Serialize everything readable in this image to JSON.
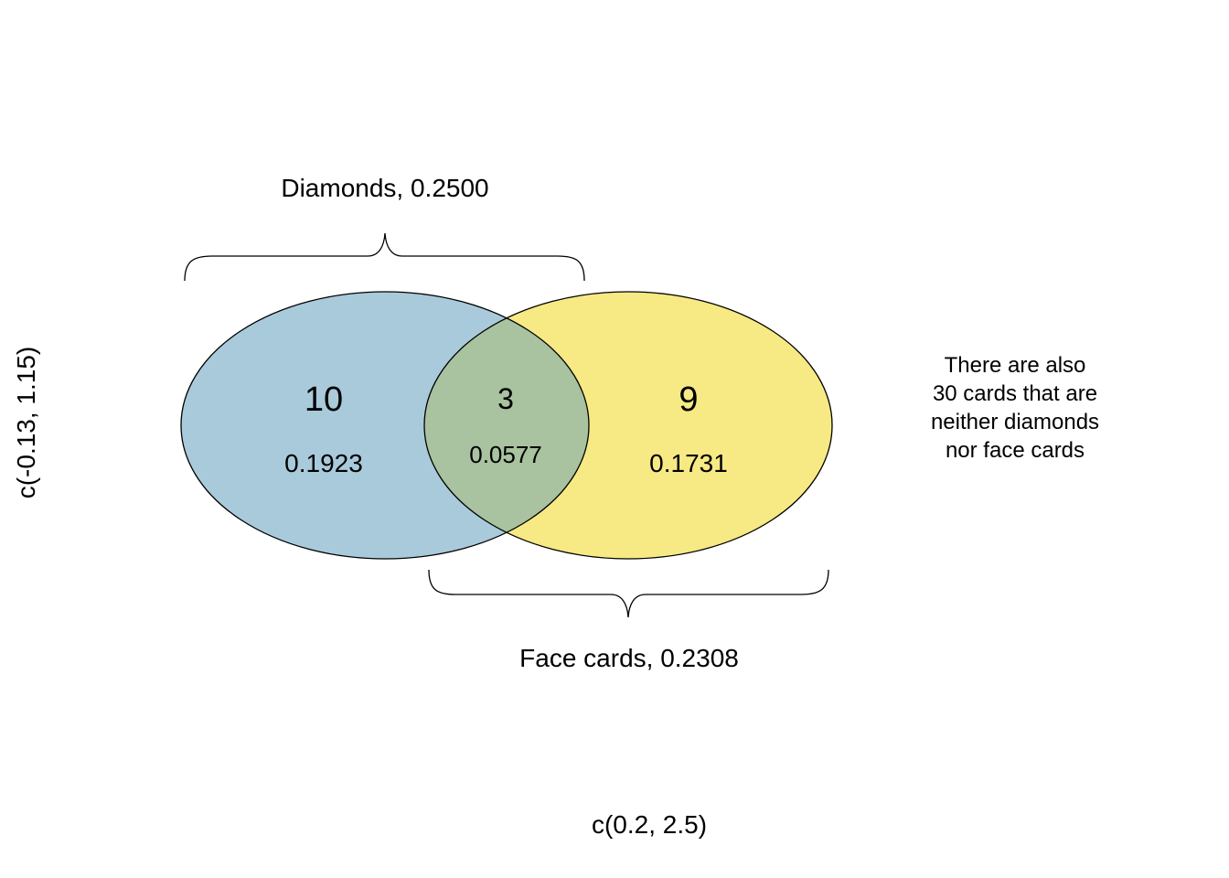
{
  "diagram": {
    "type": "venn",
    "sets": [
      {
        "id": "diamonds",
        "label": "Diamonds, 0.2500",
        "only_count": "10",
        "only_prob": "0.1923",
        "fill": "#a9cadb"
      },
      {
        "id": "face",
        "label": "Face cards, 0.2308",
        "only_count": "9",
        "only_prob": "0.1731",
        "fill": "#f7e984"
      }
    ],
    "intersection": {
      "count": "3",
      "prob": "0.0577",
      "fill": "#a9c29f"
    },
    "outside_note": [
      "There are also",
      "30 cards that are",
      "neither diamonds",
      "nor face cards"
    ],
    "axis_x_label": "c(0.2, 2.5)",
    "axis_y_label": "c(-0.13, 1.15)"
  }
}
